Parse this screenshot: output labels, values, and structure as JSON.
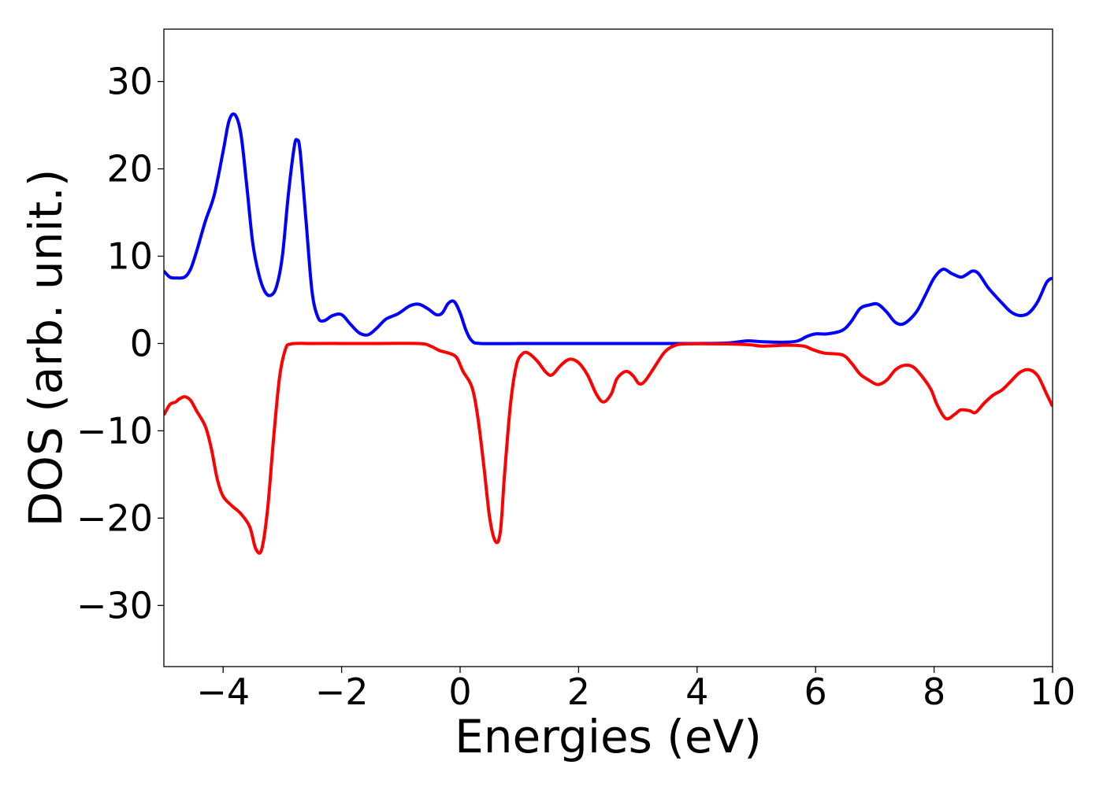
{
  "chart_data": {
    "type": "line",
    "title": "",
    "xlabel": "Energies (eV)",
    "ylabel": "DOS (arb. unit.)",
    "xlim": [
      -5,
      10
    ],
    "ylim": [
      -37,
      36
    ],
    "grid": false,
    "legend": "none",
    "xticks": [
      -4,
      -2,
      0,
      2,
      4,
      6,
      8,
      10
    ],
    "yticks": [
      30,
      20,
      10,
      0,
      -10,
      -20,
      -30
    ],
    "xtick_labels": [
      "−4",
      "−2",
      "0",
      "2",
      "4",
      "6",
      "8",
      "10"
    ],
    "ytick_labels": [
      "30",
      "20",
      "10",
      "0",
      "−10",
      "−20",
      "−30"
    ],
    "series": [
      {
        "color": "#0000ff",
        "points": [
          [
            -5.0,
            8.3
          ],
          [
            -4.9,
            7.6
          ],
          [
            -4.8,
            7.5
          ],
          [
            -4.65,
            7.6
          ],
          [
            -4.55,
            8.5
          ],
          [
            -4.45,
            10.5
          ],
          [
            -4.3,
            14.0
          ],
          [
            -4.15,
            17.0
          ],
          [
            -4.0,
            22.0
          ],
          [
            -3.9,
            25.5
          ],
          [
            -3.8,
            26.2
          ],
          [
            -3.7,
            24.0
          ],
          [
            -3.6,
            18.0
          ],
          [
            -3.5,
            11.5
          ],
          [
            -3.4,
            8.0
          ],
          [
            -3.3,
            6.0
          ],
          [
            -3.2,
            5.5
          ],
          [
            -3.1,
            6.5
          ],
          [
            -3.0,
            10.0
          ],
          [
            -2.9,
            17.0
          ],
          [
            -2.8,
            22.5
          ],
          [
            -2.75,
            23.3
          ],
          [
            -2.7,
            22.0
          ],
          [
            -2.6,
            14.0
          ],
          [
            -2.5,
            6.0
          ],
          [
            -2.4,
            3.0
          ],
          [
            -2.3,
            2.6
          ],
          [
            -2.15,
            3.2
          ],
          [
            -2.0,
            3.3
          ],
          [
            -1.85,
            2.2
          ],
          [
            -1.7,
            1.2
          ],
          [
            -1.55,
            1.0
          ],
          [
            -1.4,
            1.8
          ],
          [
            -1.25,
            2.8
          ],
          [
            -1.05,
            3.4
          ],
          [
            -0.85,
            4.3
          ],
          [
            -0.7,
            4.5
          ],
          [
            -0.55,
            4.0
          ],
          [
            -0.4,
            3.3
          ],
          [
            -0.3,
            3.5
          ],
          [
            -0.2,
            4.6
          ],
          [
            -0.1,
            4.8
          ],
          [
            0.0,
            3.5
          ],
          [
            0.1,
            1.5
          ],
          [
            0.2,
            0.3
          ],
          [
            0.35,
            0.0
          ],
          [
            1.0,
            0.0
          ],
          [
            2.0,
            0.0
          ],
          [
            3.0,
            0.0
          ],
          [
            4.0,
            0.0
          ],
          [
            4.5,
            0.05
          ],
          [
            4.85,
            0.3
          ],
          [
            5.1,
            0.2
          ],
          [
            5.5,
            0.15
          ],
          [
            5.7,
            0.3
          ],
          [
            5.85,
            0.8
          ],
          [
            6.0,
            1.1
          ],
          [
            6.2,
            1.1
          ],
          [
            6.45,
            1.5
          ],
          [
            6.6,
            2.5
          ],
          [
            6.75,
            4.0
          ],
          [
            6.9,
            4.4
          ],
          [
            7.05,
            4.5
          ],
          [
            7.2,
            3.6
          ],
          [
            7.35,
            2.4
          ],
          [
            7.5,
            2.3
          ],
          [
            7.7,
            3.6
          ],
          [
            7.85,
            5.5
          ],
          [
            8.0,
            7.5
          ],
          [
            8.15,
            8.5
          ],
          [
            8.3,
            8.0
          ],
          [
            8.45,
            7.6
          ],
          [
            8.55,
            7.9
          ],
          [
            8.65,
            8.3
          ],
          [
            8.75,
            8.0
          ],
          [
            8.9,
            6.5
          ],
          [
            9.0,
            5.7
          ],
          [
            9.15,
            4.6
          ],
          [
            9.3,
            3.6
          ],
          [
            9.45,
            3.2
          ],
          [
            9.6,
            3.5
          ],
          [
            9.75,
            4.8
          ],
          [
            9.9,
            7.0
          ],
          [
            10.0,
            7.5
          ]
        ]
      },
      {
        "color": "#ff0000",
        "points": [
          [
            -5.0,
            -8.2
          ],
          [
            -4.9,
            -7.0
          ],
          [
            -4.8,
            -6.7
          ],
          [
            -4.75,
            -6.4
          ],
          [
            -4.65,
            -6.1
          ],
          [
            -4.55,
            -6.5
          ],
          [
            -4.45,
            -7.7
          ],
          [
            -4.3,
            -9.5
          ],
          [
            -4.2,
            -12.0
          ],
          [
            -4.1,
            -15.5
          ],
          [
            -4.0,
            -17.5
          ],
          [
            -3.85,
            -18.6
          ],
          [
            -3.7,
            -19.5
          ],
          [
            -3.55,
            -21.0
          ],
          [
            -3.45,
            -23.5
          ],
          [
            -3.35,
            -23.6
          ],
          [
            -3.25,
            -19.0
          ],
          [
            -3.15,
            -11.0
          ],
          [
            -3.05,
            -4.0
          ],
          [
            -2.95,
            -0.7
          ],
          [
            -2.85,
            -0.05
          ],
          [
            -2.5,
            0.0
          ],
          [
            -2.0,
            0.0
          ],
          [
            -1.5,
            0.0
          ],
          [
            -0.7,
            0.0
          ],
          [
            -0.5,
            -0.3
          ],
          [
            -0.35,
            -0.8
          ],
          [
            -0.15,
            -1.2
          ],
          [
            -0.05,
            -1.7
          ],
          [
            0.05,
            -3.2
          ],
          [
            0.2,
            -5.0
          ],
          [
            0.3,
            -8.5
          ],
          [
            0.4,
            -14.0
          ],
          [
            0.5,
            -20.0
          ],
          [
            0.6,
            -22.7
          ],
          [
            0.68,
            -21.5
          ],
          [
            0.75,
            -15.0
          ],
          [
            0.85,
            -7.0
          ],
          [
            0.95,
            -2.5
          ],
          [
            1.05,
            -1.2
          ],
          [
            1.15,
            -1.1
          ],
          [
            1.3,
            -2.0
          ],
          [
            1.45,
            -3.3
          ],
          [
            1.55,
            -3.6
          ],
          [
            1.7,
            -2.5
          ],
          [
            1.85,
            -1.8
          ],
          [
            2.0,
            -2.2
          ],
          [
            2.15,
            -3.6
          ],
          [
            2.3,
            -5.8
          ],
          [
            2.42,
            -6.7
          ],
          [
            2.55,
            -5.8
          ],
          [
            2.65,
            -4.0
          ],
          [
            2.8,
            -3.2
          ],
          [
            2.92,
            -3.7
          ],
          [
            3.02,
            -4.6
          ],
          [
            3.12,
            -4.3
          ],
          [
            3.3,
            -2.5
          ],
          [
            3.45,
            -1.0
          ],
          [
            3.6,
            -0.3
          ],
          [
            3.8,
            -0.05
          ],
          [
            4.5,
            -0.05
          ],
          [
            4.9,
            -0.15
          ],
          [
            5.1,
            -0.3
          ],
          [
            5.5,
            -0.2
          ],
          [
            5.8,
            -0.3
          ],
          [
            5.95,
            -0.7
          ],
          [
            6.15,
            -1.1
          ],
          [
            6.45,
            -1.3
          ],
          [
            6.6,
            -2.2
          ],
          [
            6.75,
            -3.5
          ],
          [
            6.9,
            -4.2
          ],
          [
            7.05,
            -4.7
          ],
          [
            7.2,
            -4.2
          ],
          [
            7.35,
            -3.0
          ],
          [
            7.5,
            -2.5
          ],
          [
            7.65,
            -2.7
          ],
          [
            7.8,
            -3.8
          ],
          [
            7.95,
            -5.3
          ],
          [
            8.05,
            -7.0
          ],
          [
            8.2,
            -8.6
          ],
          [
            8.35,
            -8.1
          ],
          [
            8.45,
            -7.6
          ],
          [
            8.6,
            -7.7
          ],
          [
            8.7,
            -7.9
          ],
          [
            8.85,
            -6.8
          ],
          [
            9.0,
            -5.9
          ],
          [
            9.15,
            -5.3
          ],
          [
            9.3,
            -4.3
          ],
          [
            9.45,
            -3.3
          ],
          [
            9.6,
            -3.0
          ],
          [
            9.75,
            -3.7
          ],
          [
            9.9,
            -5.8
          ],
          [
            10.0,
            -7.2
          ]
        ]
      }
    ]
  }
}
